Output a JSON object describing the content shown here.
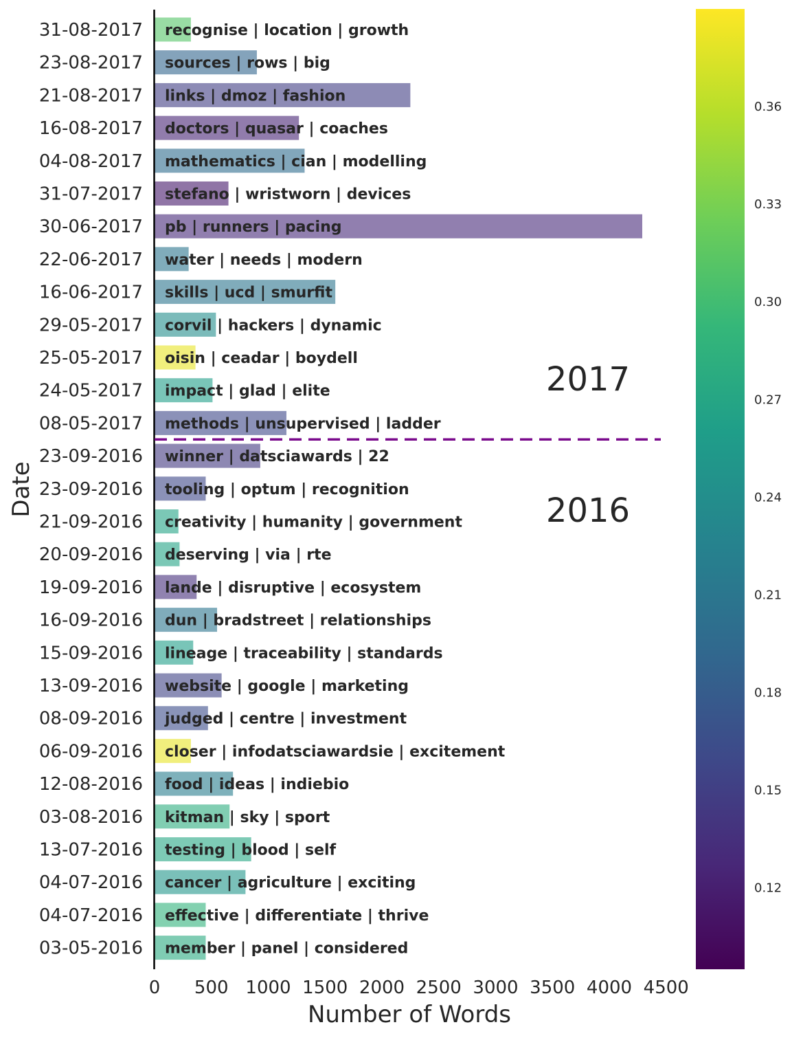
{
  "chart_data": {
    "type": "bar",
    "orientation": "horizontal",
    "xlabel": "Number of Words",
    "ylabel": "Date",
    "xlim": [
      0,
      4500
    ],
    "xticks": [
      0,
      500,
      1000,
      1500,
      2000,
      2500,
      3000,
      3500,
      4000,
      4500
    ],
    "grid": false,
    "colormap": "viridis",
    "colorbar": {
      "range": [
        0.095,
        0.39
      ],
      "ticks": [
        0.12,
        0.15,
        0.18,
        0.21,
        0.24,
        0.27,
        0.3,
        0.33,
        0.36
      ],
      "tick_labels": [
        "0.12",
        "0.15",
        "0.18",
        "0.21",
        "0.24",
        "0.27",
        "0.30",
        "0.33",
        "0.36"
      ]
    },
    "bar_alpha": 0.6,
    "annotations": [
      {
        "text": "2017",
        "position": "right, above separator"
      },
      {
        "text": "2016",
        "position": "right, below separator"
      }
    ],
    "separator": {
      "style": "dashed",
      "color": "#7a0a8c",
      "between": [
        "08-05-2017",
        "23-09-2016"
      ]
    },
    "rows": [
      {
        "date": "31-08-2017",
        "words": 320,
        "score": 0.31,
        "label": "recognise | location | growth"
      },
      {
        "date": "23-08-2017",
        "words": 900,
        "score": 0.19,
        "label": "sources | rows | big"
      },
      {
        "date": "21-08-2017",
        "words": 2250,
        "score": 0.15,
        "label": "links | dmoz | fashion"
      },
      {
        "date": "16-08-2017",
        "words": 1270,
        "score": 0.125,
        "label": "doctors | quasar | coaches"
      },
      {
        "date": "04-08-2017",
        "words": 1320,
        "score": 0.2,
        "label": "mathematics | cian | modelling"
      },
      {
        "date": "31-07-2017",
        "words": 650,
        "score": 0.115,
        "label": "stefano | wristworn | devices"
      },
      {
        "date": "30-06-2017",
        "words": 4290,
        "score": 0.13,
        "label": "pb | runners | pacing"
      },
      {
        "date": "22-06-2017",
        "words": 300,
        "score": 0.21,
        "label": "water | needs | modern"
      },
      {
        "date": "16-06-2017",
        "words": 1590,
        "score": 0.21,
        "label": "skills | ucd | smurfit"
      },
      {
        "date": "29-05-2017",
        "words": 540,
        "score": 0.24,
        "label": "corvil | hackers | dynamic"
      },
      {
        "date": "25-05-2017",
        "words": 360,
        "score": 0.38,
        "label": "oisin | ceadar | boydell"
      },
      {
        "date": "24-05-2017",
        "words": 510,
        "score": 0.26,
        "label": "impact | glad | elite"
      },
      {
        "date": "08-05-2017",
        "words": 1160,
        "score": 0.16,
        "label": "methods | unsupervised | ladder"
      },
      {
        "date": "23-09-2016",
        "words": 930,
        "score": 0.145,
        "label": "winner | datsciawards | 22"
      },
      {
        "date": "23-09-2016",
        "words": 450,
        "score": 0.16,
        "label": "tooling | optum | recognition"
      },
      {
        "date": "21-09-2016",
        "words": 210,
        "score": 0.265,
        "label": "creativity | humanity | government"
      },
      {
        "date": "20-09-2016",
        "words": 220,
        "score": 0.265,
        "label": "deserving | via | rte"
      },
      {
        "date": "19-09-2016",
        "words": 370,
        "score": 0.135,
        "label": "lande | disruptive | ecosystem"
      },
      {
        "date": "16-09-2016",
        "words": 550,
        "score": 0.21,
        "label": "dun | bradstreet | relationships"
      },
      {
        "date": "15-09-2016",
        "words": 340,
        "score": 0.26,
        "label": "lineage | traceability | standards"
      },
      {
        "date": "13-09-2016",
        "words": 590,
        "score": 0.155,
        "label": "website | google | marketing"
      },
      {
        "date": "08-09-2016",
        "words": 470,
        "score": 0.165,
        "label": "judged | centre | investment"
      },
      {
        "date": "06-09-2016",
        "words": 320,
        "score": 0.38,
        "label": "closer | infodatsciawardsie | excitement"
      },
      {
        "date": "12-08-2016",
        "words": 690,
        "score": 0.22,
        "label": "food | ideas | indiebio"
      },
      {
        "date": "03-08-2016",
        "words": 660,
        "score": 0.28,
        "label": "kitman | sky | sport"
      },
      {
        "date": "13-07-2016",
        "words": 850,
        "score": 0.27,
        "label": "testing | blood | self"
      },
      {
        "date": "04-07-2016",
        "words": 800,
        "score": 0.25,
        "label": "cancer | agriculture | exciting"
      },
      {
        "date": "04-07-2016",
        "words": 450,
        "score": 0.285,
        "label": "effective | differentiate | thrive"
      },
      {
        "date": "03-05-2016",
        "words": 450,
        "score": 0.275,
        "label": "member | panel | considered"
      }
    ]
  }
}
